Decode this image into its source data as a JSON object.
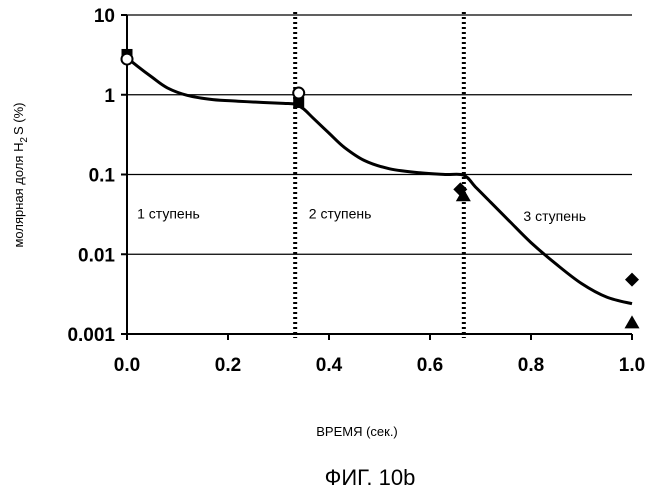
{
  "chart_data": {
    "type": "scatter",
    "title": "",
    "caption": "ФИГ. 10b",
    "xlabel": "ВРЕМЯ (сек.)",
    "ylabel": {
      "prefix": "молярная доля H",
      "subscript": "2",
      "suffix": "S   (%)"
    },
    "xlim": [
      0.0,
      1.0
    ],
    "ylim": [
      0.001,
      10
    ],
    "yscale": "log",
    "grid": "horizontal",
    "x_ticks": [
      {
        "value": 0.0,
        "label": "0.0"
      },
      {
        "value": 0.2,
        "label": "0.2"
      },
      {
        "value": 0.4,
        "label": "0.4"
      },
      {
        "value": 0.6,
        "label": "0.6"
      },
      {
        "value": 0.8,
        "label": "0.8"
      },
      {
        "value": 1.0,
        "label": "1.0"
      }
    ],
    "y_ticks": [
      {
        "value": 10,
        "label": "10"
      },
      {
        "value": 1,
        "label": "1"
      },
      {
        "value": 0.1,
        "label": "0.1"
      },
      {
        "value": 0.01,
        "label": "0.01"
      },
      {
        "value": 0.001,
        "label": "0.001"
      }
    ],
    "stage_boundaries": [
      0.333,
      0.667
    ],
    "stage_labels": [
      {
        "text": "1 ступень",
        "x": 0.02,
        "y": 0.028
      },
      {
        "text": "2 ступень",
        "x": 0.36,
        "y": 0.028
      },
      {
        "text": "3 ступень",
        "x": 0.785,
        "y": 0.026
      }
    ],
    "curve": {
      "x": [
        0.0,
        0.02,
        0.05,
        0.08,
        0.12,
        0.17,
        0.22,
        0.27,
        0.31,
        0.333,
        0.35,
        0.37,
        0.4,
        0.43,
        0.47,
        0.52,
        0.58,
        0.63,
        0.667,
        0.69,
        0.72,
        0.76,
        0.8,
        0.85,
        0.9,
        0.95,
        1.0
      ],
      "y": [
        2.9,
        2.3,
        1.65,
        1.22,
        0.98,
        0.87,
        0.83,
        0.8,
        0.78,
        0.76,
        0.66,
        0.5,
        0.33,
        0.22,
        0.15,
        0.118,
        0.105,
        0.1,
        0.098,
        0.07,
        0.045,
        0.025,
        0.014,
        0.0075,
        0.0043,
        0.0029,
        0.0024
      ]
    },
    "series": [
      {
        "marker": "square",
        "points": [
          {
            "x": 0.0,
            "y": 3.2
          },
          {
            "x": 0.34,
            "y": 0.8
          }
        ]
      },
      {
        "marker": "circle-open",
        "points": [
          {
            "x": 0.0,
            "y": 2.8
          },
          {
            "x": 0.34,
            "y": 1.05
          }
        ]
      },
      {
        "marker": "diamond",
        "points": [
          {
            "x": 0.66,
            "y": 0.065
          },
          {
            "x": 1.0,
            "y": 0.0048
          }
        ]
      },
      {
        "marker": "triangle",
        "points": [
          {
            "x": 0.666,
            "y": 0.055
          },
          {
            "x": 1.0,
            "y": 0.0014
          }
        ]
      }
    ]
  }
}
